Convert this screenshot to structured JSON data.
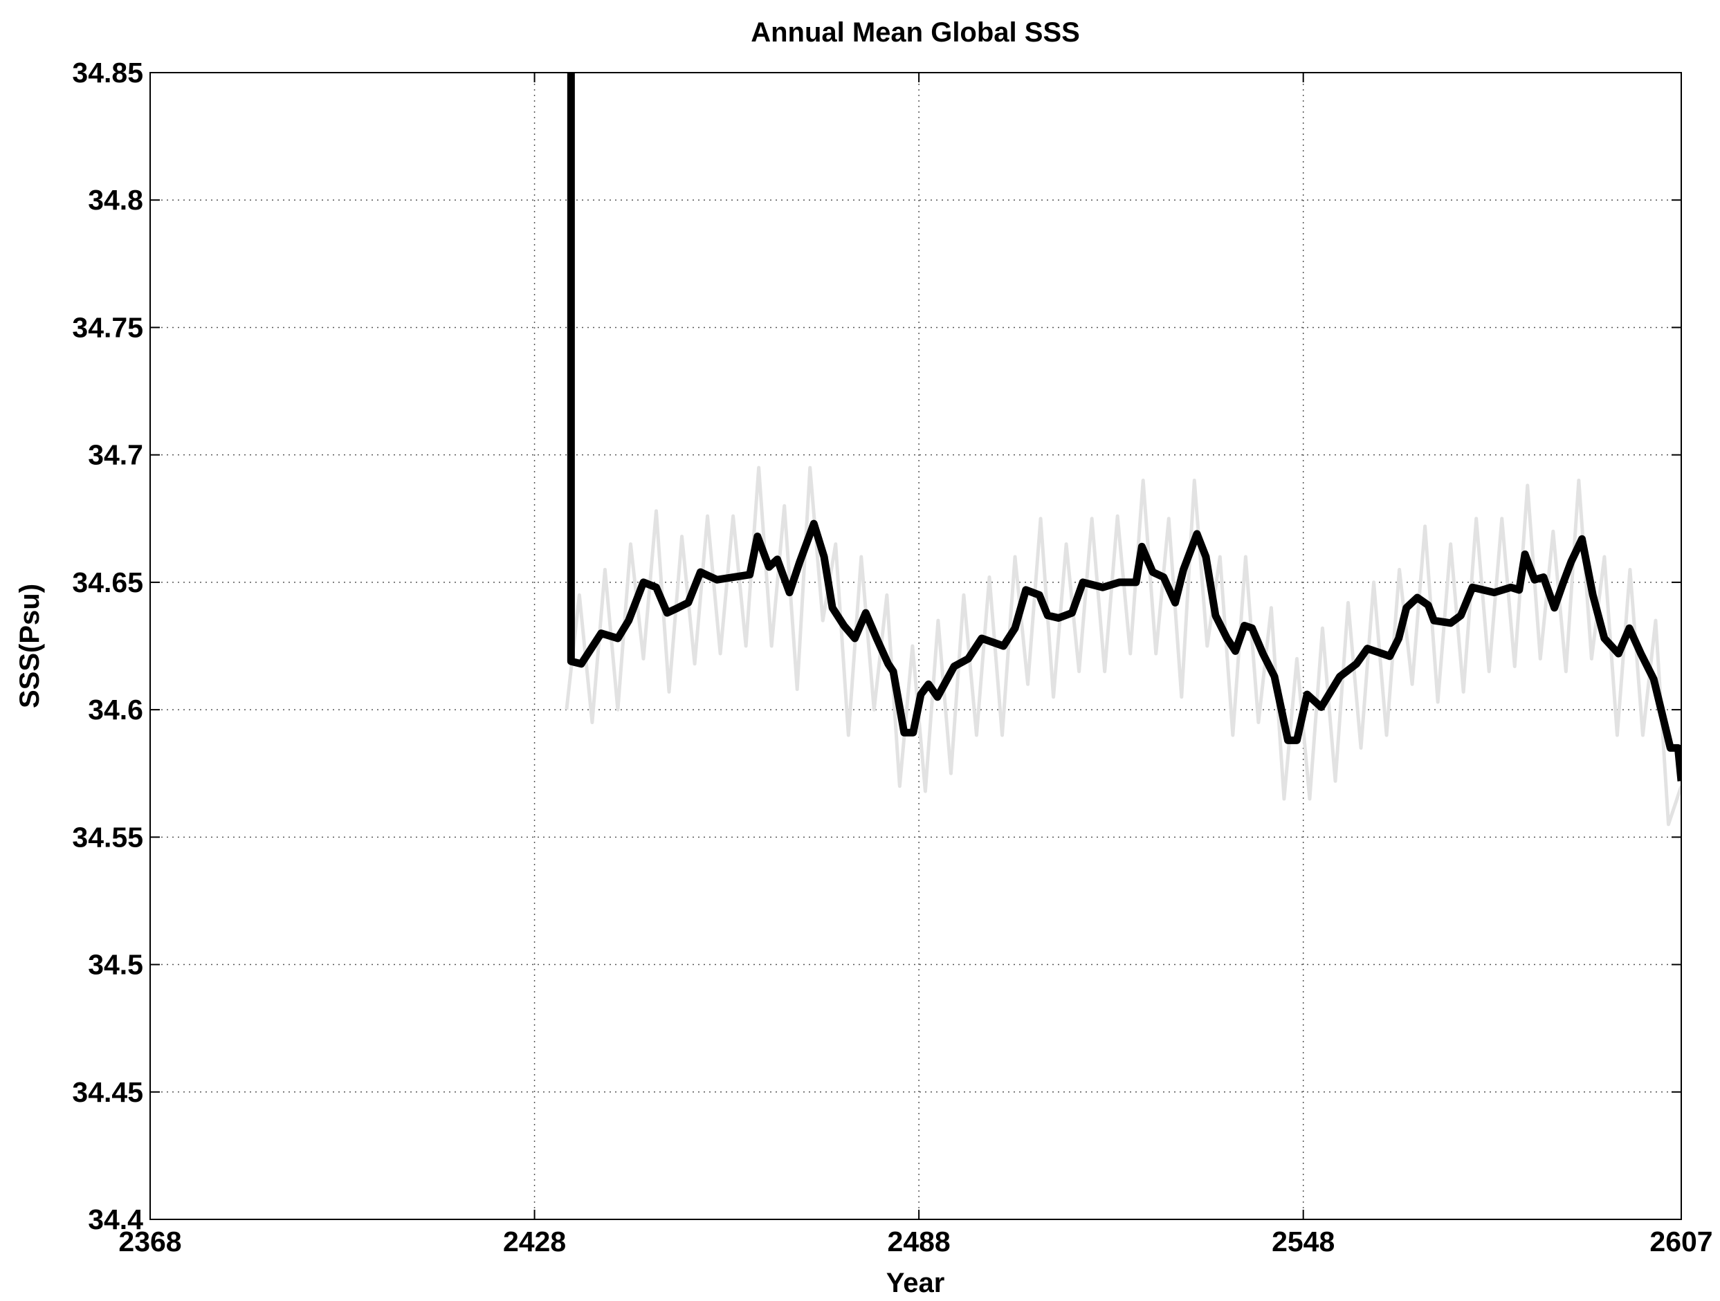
{
  "chart_data": {
    "type": "line",
    "title": "Annual Mean Global SSS",
    "x_label": "Year",
    "y_label": "SSS(Psu)",
    "xlim": [
      2368,
      2607
    ],
    "xticks": [
      2368,
      2428,
      2488,
      2548,
      2607
    ],
    "ylim": [
      34.4,
      34.85
    ],
    "yticks": [
      34.4,
      34.45,
      34.5,
      34.55,
      34.6,
      34.65,
      34.7,
      34.75,
      34.8,
      34.85
    ],
    "grid": true,
    "series": [
      {
        "color": "#e2e2e2",
        "x": [
          2433,
          2435,
          2437,
          2439,
          2441,
          2443,
          2445,
          2447,
          2449,
          2451,
          2453,
          2455,
          2457,
          2459,
          2461,
          2463,
          2465,
          2467,
          2469,
          2471,
          2473,
          2475,
          2477,
          2479,
          2481,
          2483,
          2485,
          2487,
          2489,
          2491,
          2493,
          2495,
          2497,
          2499,
          2501,
          2503,
          2505,
          2507,
          2509,
          2511,
          2513,
          2515,
          2517,
          2519,
          2521,
          2523,
          2525,
          2527,
          2529,
          2531,
          2533,
          2535,
          2537,
          2539,
          2541,
          2543,
          2545,
          2547,
          2549,
          2551,
          2553,
          2555,
          2557,
          2559,
          2561,
          2563,
          2565,
          2567,
          2569,
          2571,
          2573,
          2575,
          2577,
          2579,
          2581,
          2583,
          2585,
          2587,
          2589,
          2591,
          2593,
          2595,
          2597,
          2599,
          2601,
          2603,
          2605,
          2607
        ],
        "values": [
          34.6,
          34.645,
          34.595,
          34.655,
          34.6,
          34.665,
          34.62,
          34.678,
          34.607,
          34.668,
          34.618,
          34.676,
          34.622,
          34.676,
          34.625,
          34.695,
          34.625,
          34.68,
          34.608,
          34.695,
          34.635,
          34.665,
          34.59,
          34.66,
          34.6,
          34.645,
          34.57,
          34.625,
          34.568,
          34.635,
          34.575,
          34.645,
          34.59,
          34.652,
          34.59,
          34.66,
          34.61,
          34.675,
          34.605,
          34.665,
          34.615,
          34.675,
          34.615,
          34.676,
          34.622,
          34.69,
          34.622,
          34.675,
          34.605,
          34.69,
          34.625,
          34.66,
          34.59,
          34.66,
          34.595,
          34.64,
          34.565,
          34.62,
          34.565,
          34.632,
          34.572,
          34.642,
          34.585,
          34.65,
          34.59,
          34.655,
          34.61,
          34.672,
          34.603,
          34.665,
          34.607,
          34.675,
          34.615,
          34.675,
          34.617,
          34.688,
          34.62,
          34.67,
          34.615,
          34.69,
          34.62,
          34.66,
          34.59,
          34.655,
          34.59,
          34.635,
          34.555,
          34.57
        ]
      },
      {
        "color": "#000000",
        "x": [
          2433.7,
          2433.7,
          2435.3,
          2438.4,
          2441,
          2442.7,
          2445,
          2447,
          2448.7,
          2450.4,
          2452,
          2453.9,
          2456.5,
          2459,
          2461.6,
          2462.8,
          2464.6,
          2465.9,
          2467.8,
          2469.4,
          2471.6,
          2473.2,
          2474.5,
          2476.3,
          2478,
          2479.7,
          2481.4,
          2483.2,
          2484,
          2485.7,
          2487.1,
          2488.3,
          2489.5,
          2490.9,
          2493.5,
          2495.7,
          2497.8,
          2501.2,
          2503,
          2504.7,
          2506.8,
          2508.1,
          2509.8,
          2511.9,
          2513.6,
          2516.7,
          2519.3,
          2521.9,
          2522.8,
          2524.5,
          2526.2,
          2528,
          2529.3,
          2531.4,
          2532.8,
          2534.3,
          2536.1,
          2537.4,
          2538.8,
          2540,
          2541.7,
          2543.5,
          2545.6,
          2547,
          2548.6,
          2550.8,
          2553.7,
          2556.3,
          2558,
          2561.5,
          2562.9,
          2564.1,
          2565.8,
          2567.5,
          2568.4,
          2571,
          2572.6,
          2574.4,
          2577.8,
          2580.4,
          2581.7,
          2582.6,
          2584.1,
          2585.5,
          2587.2,
          2588.6,
          2589.8,
          2591.5,
          2593.2,
          2595,
          2597.2,
          2598.9,
          2600.7,
          2602.7,
          2605.3,
          2606.5,
          2607
        ],
        "values": [
          34.85,
          34.619,
          34.618,
          34.63,
          34.628,
          34.635,
          34.65,
          34.648,
          34.638,
          34.64,
          34.642,
          34.654,
          34.651,
          34.652,
          34.653,
          34.668,
          34.656,
          34.659,
          34.646,
          34.658,
          34.673,
          34.66,
          34.64,
          34.633,
          34.628,
          34.638,
          34.628,
          34.618,
          34.615,
          34.591,
          34.591,
          34.606,
          34.61,
          34.605,
          34.617,
          34.62,
          34.628,
          34.625,
          34.632,
          34.647,
          34.645,
          34.637,
          34.636,
          34.638,
          34.65,
          34.648,
          34.65,
          34.65,
          34.664,
          34.654,
          34.652,
          34.642,
          34.655,
          34.669,
          34.66,
          34.637,
          34.628,
          34.623,
          34.633,
          34.632,
          34.622,
          34.613,
          34.588,
          34.588,
          34.606,
          34.601,
          34.613,
          34.618,
          34.624,
          34.621,
          34.628,
          34.64,
          34.644,
          34.641,
          34.635,
          34.634,
          34.637,
          34.648,
          34.646,
          34.648,
          34.647,
          34.661,
          34.651,
          34.652,
          34.64,
          34.65,
          34.658,
          34.667,
          34.645,
          34.628,
          34.622,
          34.632,
          34.622,
          34.612,
          34.585,
          34.585,
          34.572
        ]
      }
    ]
  }
}
